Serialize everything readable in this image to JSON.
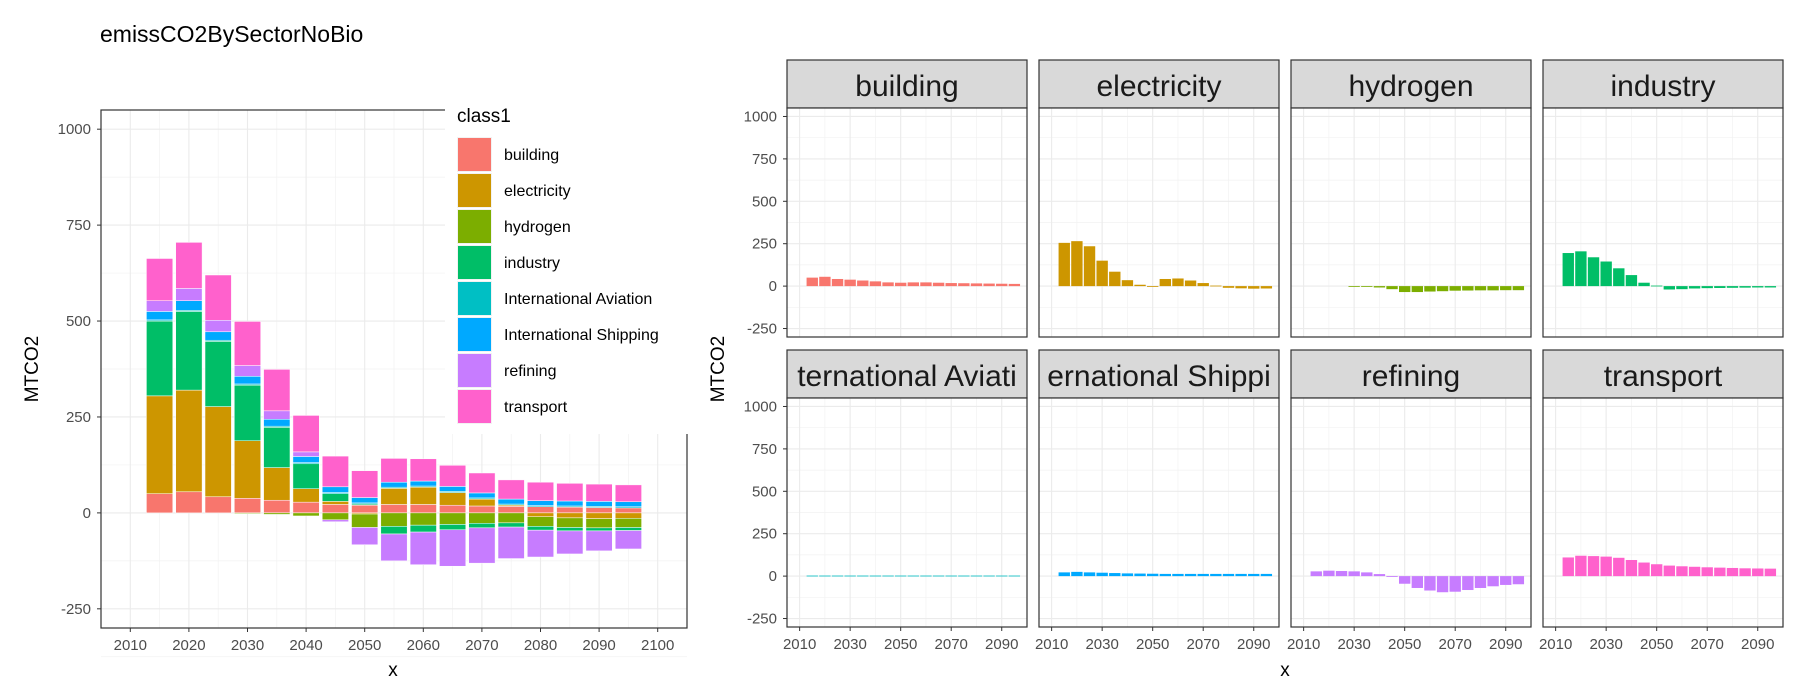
{
  "chart_data": [
    {
      "type": "bar",
      "stacked": true,
      "title": "emissCO2BySectorNoBio",
      "xlabel": "x",
      "ylabel": "MTCO2",
      "xlim": [
        2005,
        2105
      ],
      "ylim": [
        -300,
        1050
      ],
      "x_ticks": [
        2010,
        2020,
        2030,
        2040,
        2050,
        2060,
        2070,
        2080,
        2090,
        2100
      ],
      "y_ticks": [
        -250,
        0,
        250,
        500,
        750,
        1000
      ],
      "grid": true,
      "legend_position": "right",
      "legend_title": "class1",
      "x": [
        2015,
        2020,
        2025,
        2030,
        2035,
        2040,
        2045,
        2050,
        2055,
        2060,
        2065,
        2070,
        2075,
        2080,
        2085,
        2090,
        2095
      ],
      "series": [
        {
          "name": "building",
          "color": "#F8766D",
          "values": [
            50,
            55,
            42,
            38,
            33,
            28,
            22,
            20,
            22,
            22,
            20,
            18,
            17,
            16,
            15,
            14,
            13
          ]
        },
        {
          "name": "electricity",
          "color": "#CD9600",
          "values": [
            255,
            265,
            235,
            150,
            85,
            35,
            8,
            -3,
            42,
            45,
            33,
            18,
            3,
            -10,
            -13,
            -15,
            -14
          ]
        },
        {
          "name": "hydrogen",
          "color": "#7CAE00",
          "values": [
            0,
            0,
            0,
            -2,
            -4,
            -8,
            -18,
            -35,
            -35,
            -32,
            -30,
            -27,
            -26,
            -25,
            -25,
            -24,
            -24
          ]
        },
        {
          "name": "industry",
          "color": "#00BE67",
          "values": [
            195,
            205,
            170,
            145,
            105,
            65,
            20,
            3,
            -20,
            -18,
            -14,
            -12,
            -11,
            -10,
            -9,
            -8,
            -8
          ]
        },
        {
          "name": "International Aviation",
          "color": "#00BFC4",
          "values": [
            3,
            3,
            3,
            3,
            3,
            3,
            3,
            3,
            3,
            3,
            3,
            3,
            3,
            3,
            3,
            3,
            3
          ]
        },
        {
          "name": "International Shipping",
          "color": "#00A9FF",
          "values": [
            22,
            25,
            22,
            20,
            18,
            16,
            15,
            14,
            13,
            13,
            13,
            13,
            13,
            13,
            13,
            13,
            13
          ]
        },
        {
          "name": "refining",
          "color": "#C77CFF",
          "values": [
            28,
            32,
            30,
            28,
            22,
            12,
            -5,
            -45,
            -70,
            -85,
            -95,
            -92,
            -82,
            -70,
            -60,
            -52,
            -48
          ]
        },
        {
          "name": "transport",
          "color": "#FF61CC",
          "values": [
            110,
            120,
            118,
            115,
            108,
            95,
            80,
            70,
            62,
            58,
            55,
            52,
            50,
            48,
            46,
            45,
            44
          ]
        }
      ]
    },
    {
      "type": "bar",
      "faceted": true,
      "xlabel": "x",
      "ylabel": "MTCO2",
      "xlim": [
        2005,
        2100
      ],
      "ylim": [
        -300,
        1050
      ],
      "x_ticks": [
        2010,
        2030,
        2050,
        2070,
        2090
      ],
      "y_ticks": [
        -250,
        0,
        250,
        500,
        750,
        1000
      ],
      "grid": true,
      "facets": [
        "building",
        "electricity",
        "hydrogen",
        "industry",
        "ternational Aviati",
        "ernational Shippi",
        "refining",
        "transport"
      ]
    }
  ]
}
